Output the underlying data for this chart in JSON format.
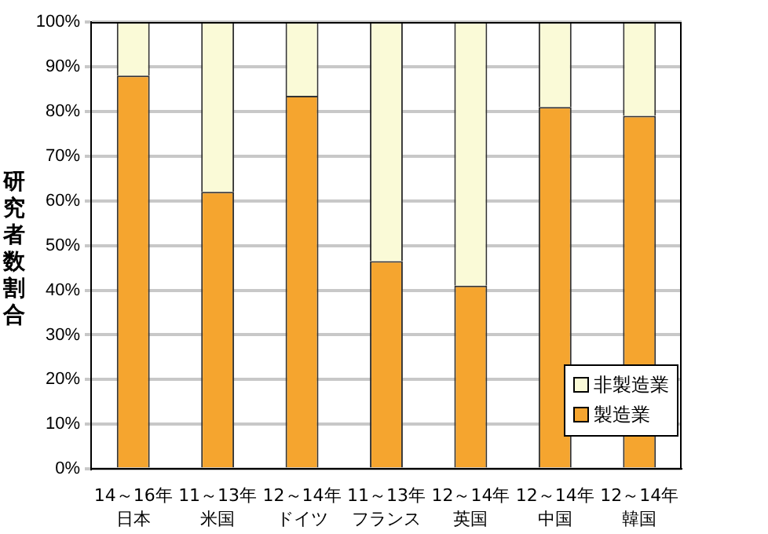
{
  "chart_data": {
    "type": "bar",
    "stacked": true,
    "ylabel": "研究者数割合",
    "categories": [
      "14～16年日本",
      "11～13年米国",
      "12～14年ドイツ",
      "11～13年フランス",
      "12～14年英国",
      "12～14年中国",
      "12～14年韓国"
    ],
    "series": [
      {
        "name": "製造業",
        "color": "#f5a52f",
        "values": [
          88,
          62,
          83.5,
          46.5,
          41,
          81,
          79
        ]
      },
      {
        "name": "非製造業",
        "color": "#fafad7",
        "values": [
          12,
          38,
          16.5,
          53.5,
          59,
          19,
          21
        ]
      }
    ],
    "ylim": [
      0,
      100
    ],
    "yticks": [
      {
        "value": 0,
        "label": "0%"
      },
      {
        "value": 10,
        "label": "10%"
      },
      {
        "value": 20,
        "label": "20%"
      },
      {
        "value": 30,
        "label": "30%"
      },
      {
        "value": 40,
        "label": "40%"
      },
      {
        "value": 50,
        "label": "50%"
      },
      {
        "value": 60,
        "label": "60%"
      },
      {
        "value": 70,
        "label": "70%"
      },
      {
        "value": 80,
        "label": "80%"
      },
      {
        "value": 90,
        "label": "90%"
      },
      {
        "value": 100,
        "label": "100%"
      }
    ],
    "grid": "y",
    "legend": "bottom right"
  }
}
